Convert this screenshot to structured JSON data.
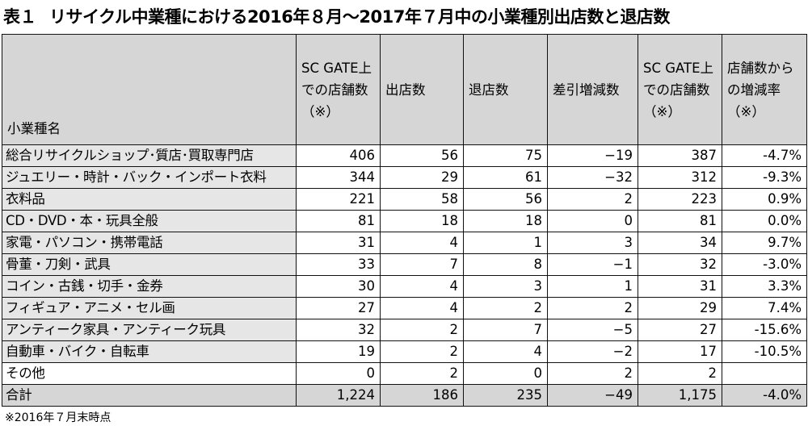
{
  "title": {
    "number": "表１",
    "text": "リサイクル中業種における2016年８月～2017年７月中の小業種別出店数と退店数"
  },
  "columns": [
    {
      "key": "name",
      "label": "小業種名"
    },
    {
      "key": "stores_before",
      "label": "SC GATE上での店舗数（※）"
    },
    {
      "key": "openings",
      "label": "出店数"
    },
    {
      "key": "closings",
      "label": "退店数"
    },
    {
      "key": "net",
      "label": "差引増減数"
    },
    {
      "key": "stores_after",
      "label": "SC GATE上での店舗数（※）"
    },
    {
      "key": "rate",
      "label": "店舗数からの増減率（※）"
    }
  ],
  "rows": [
    {
      "name": "総合リサイクルショップ･質店･買取専門店",
      "stores_before": "406",
      "openings": "56",
      "closings": "75",
      "net": "−19",
      "stores_after": "387",
      "rate": "-4.7%"
    },
    {
      "name": "ジュエリー・時計・バック・インポート衣料",
      "stores_before": "344",
      "openings": "29",
      "closings": "61",
      "net": "−32",
      "stores_after": "312",
      "rate": "-9.3%"
    },
    {
      "name": "衣料品",
      "stores_before": "221",
      "openings": "58",
      "closings": "56",
      "net": "2",
      "stores_after": "223",
      "rate": "0.9%"
    },
    {
      "name": "CD・DVD・本・玩具全般",
      "stores_before": "81",
      "openings": "18",
      "closings": "18",
      "net": "0",
      "stores_after": "81",
      "rate": "0.0%"
    },
    {
      "name": "家電・パソコン・携帯電話",
      "stores_before": "31",
      "openings": "4",
      "closings": "1",
      "net": "3",
      "stores_after": "34",
      "rate": "9.7%"
    },
    {
      "name": "骨董・刀剣・武具",
      "stores_before": "33",
      "openings": "7",
      "closings": "8",
      "net": "−1",
      "stores_after": "32",
      "rate": "-3.0%"
    },
    {
      "name": "コイン・古銭・切手・金券",
      "stores_before": "30",
      "openings": "4",
      "closings": "3",
      "net": "1",
      "stores_after": "31",
      "rate": "3.3%"
    },
    {
      "name": "フィギュア・アニメ・セル画",
      "stores_before": "27",
      "openings": "4",
      "closings": "2",
      "net": "2",
      "stores_after": "29",
      "rate": "7.4%"
    },
    {
      "name": "アンティーク家具・アンティーク玩具",
      "stores_before": "32",
      "openings": "2",
      "closings": "7",
      "net": "−5",
      "stores_after": "27",
      "rate": "-15.6%"
    },
    {
      "name": "自動車・バイク・自転車",
      "stores_before": "19",
      "openings": "2",
      "closings": "4",
      "net": "−2",
      "stores_after": "17",
      "rate": "-10.5%"
    },
    {
      "name": "その他",
      "stores_before": "0",
      "openings": "2",
      "closings": "0",
      "net": "2",
      "stores_after": "2",
      "rate": ""
    }
  ],
  "total": {
    "name": "合計",
    "stores_before": "1,224",
    "openings": "186",
    "closings": "235",
    "net": "−49",
    "stores_after": "1,175",
    "rate": "-4.0%"
  },
  "footnote": "※2016年７月末時点"
}
